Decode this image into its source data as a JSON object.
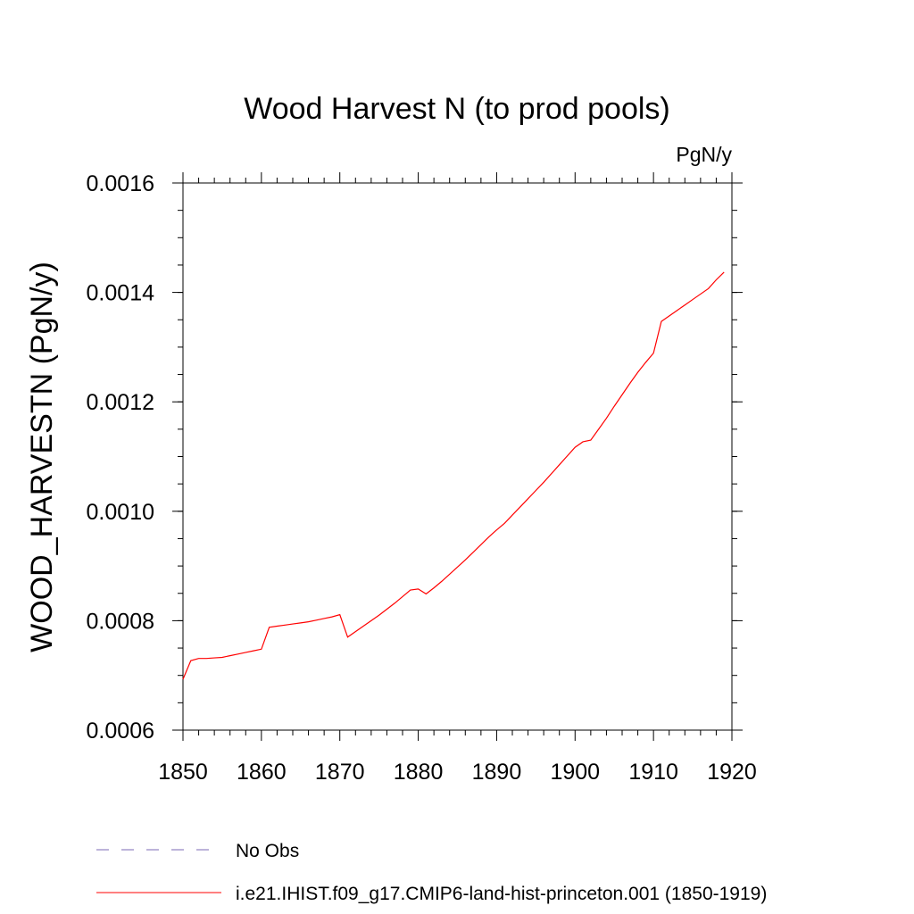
{
  "chart_data": {
    "type": "line",
    "title": "Wood Harvest N (to prod pools)",
    "units_label": "PgN/y",
    "ylabel": "WOOD_HARVESTN  (PgN/y)",
    "xlabel": "",
    "xlim": [
      1850,
      1920
    ],
    "ylim": [
      0.0006,
      0.0016
    ],
    "x_ticks": [
      1850,
      1860,
      1870,
      1880,
      1890,
      1900,
      1910,
      1920
    ],
    "x_tick_labels": [
      "1850",
      "1860",
      "1870",
      "1880",
      "1890",
      "1900",
      "1910",
      "1920"
    ],
    "y_ticks": [
      0.0006,
      0.0008,
      0.001,
      0.0012,
      0.0014,
      0.0016
    ],
    "y_tick_labels": [
      "0.0006",
      "0.0008",
      "0.0010",
      "0.0012",
      "0.0014",
      "0.0016"
    ],
    "grid": false,
    "legend_position": "bottom",
    "series": [
      {
        "name": "No Obs",
        "color": "#7b68b5",
        "dash": "dashed",
        "x": [],
        "y": []
      },
      {
        "name": "i.e21.IHIST.f09_g17.CMIP6-land-hist-princeton.001 (1850-1919)",
        "color": "#ff0000",
        "dash": "solid",
        "x": [
          1850,
          1851,
          1852,
          1853,
          1854,
          1855,
          1856,
          1857,
          1858,
          1859,
          1860,
          1861,
          1862,
          1863,
          1864,
          1865,
          1866,
          1867,
          1868,
          1869,
          1870,
          1871,
          1872,
          1873,
          1874,
          1875,
          1876,
          1877,
          1878,
          1879,
          1880,
          1881,
          1882,
          1883,
          1884,
          1885,
          1886,
          1887,
          1888,
          1889,
          1890,
          1891,
          1892,
          1893,
          1894,
          1895,
          1896,
          1897,
          1898,
          1899,
          1900,
          1901,
          1902,
          1903,
          1904,
          1905,
          1906,
          1907,
          1908,
          1909,
          1910,
          1911,
          1912,
          1913,
          1914,
          1915,
          1916,
          1917,
          1918,
          1919
        ],
        "y": [
          0.000693,
          0.000727,
          0.000731,
          0.000731,
          0.000732,
          0.000733,
          0.000736,
          0.000739,
          0.000742,
          0.000745,
          0.000748,
          0.000788,
          0.00079,
          0.000792,
          0.000794,
          0.000796,
          0.000798,
          0.000801,
          0.000804,
          0.000807,
          0.000811,
          0.00077,
          0.00078,
          0.00079,
          0.0008,
          0.00081,
          0.000821,
          0.000832,
          0.000844,
          0.000856,
          0.000858,
          0.000849,
          0.00086,
          0.000872,
          0.000885,
          0.000898,
          0.000911,
          0.000925,
          0.000939,
          0.000953,
          0.000966,
          0.000978,
          0.000993,
          0.001008,
          0.001023,
          0.001038,
          0.001053,
          0.001069,
          0.001085,
          0.001101,
          0.001117,
          0.001127,
          0.00113,
          0.00115,
          0.00117,
          0.001192,
          0.001213,
          0.001234,
          0.001254,
          0.001272,
          0.001289,
          0.001347,
          0.001357,
          0.001367,
          0.001377,
          0.001387,
          0.001397,
          0.001407,
          0.001423,
          0.001437
        ]
      }
    ]
  }
}
